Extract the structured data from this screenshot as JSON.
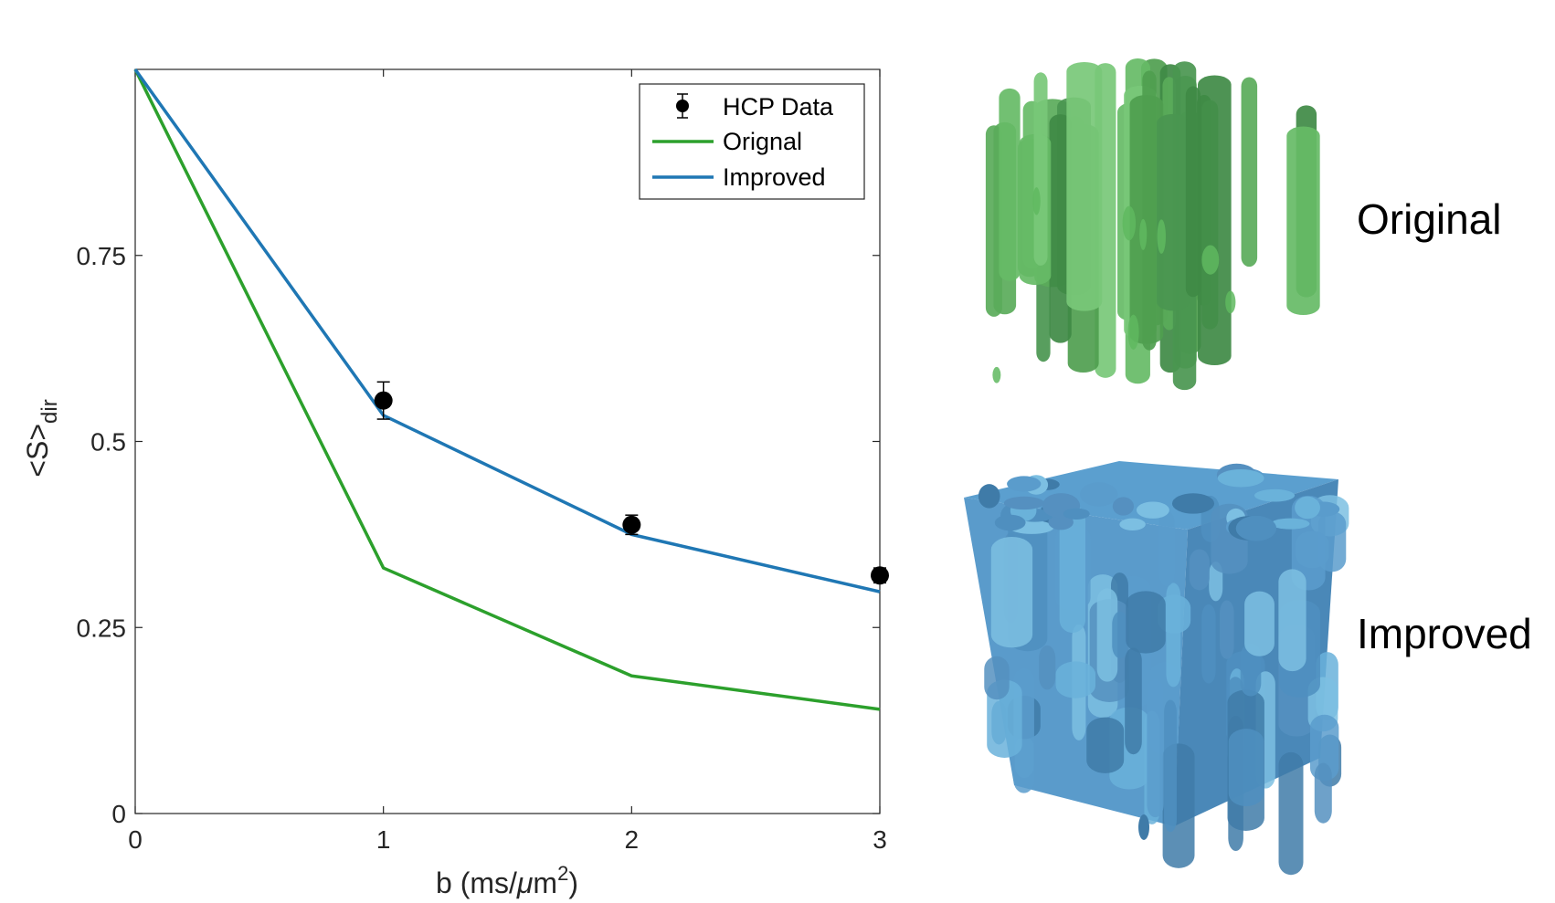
{
  "chart_data": {
    "type": "line",
    "xlabel": "b (ms/μm²)",
    "ylabel": "<S>dir",
    "xlim": [
      0,
      3
    ],
    "ylim": [
      0,
      1
    ],
    "x_ticks": [
      "0",
      "1",
      "2",
      "3"
    ],
    "y_ticks": [
      "0",
      "0.25",
      "0.5",
      "0.75"
    ],
    "x": [
      0,
      1,
      2,
      3
    ],
    "series": [
      {
        "name": "HCP Data",
        "kind": "errorbar",
        "color": "#000000",
        "x": [
          1,
          2,
          3
        ],
        "values": [
          0.555,
          0.388,
          0.32
        ],
        "errors": [
          0.025,
          0.013,
          0.01
        ]
      },
      {
        "name": "Orignal",
        "kind": "line",
        "color": "#2ca02c",
        "x": [
          0,
          1,
          2,
          3
        ],
        "values": [
          1.0,
          0.33,
          0.185,
          0.14
        ]
      },
      {
        "name": "Improved",
        "kind": "line",
        "color": "#1f77b4",
        "x": [
          0,
          1,
          2,
          3
        ],
        "values": [
          1.0,
          0.535,
          0.375,
          0.298
        ]
      }
    ],
    "legend": {
      "position": "top-right",
      "entries": [
        "HCP Data",
        "Orignal",
        "Improved"
      ]
    }
  },
  "renders": [
    {
      "label": "Original",
      "color": "#5cb85c"
    },
    {
      "label": "Improved",
      "color": "#5fa8d3"
    }
  ],
  "axis_text": {
    "ylabel_main": "<S>",
    "ylabel_sub": "dir",
    "xlabel_main": "b (ms/",
    "xlabel_mu": "μ",
    "xlabel_m": "m",
    "xlabel_sup": "2",
    "xlabel_close": ")"
  }
}
